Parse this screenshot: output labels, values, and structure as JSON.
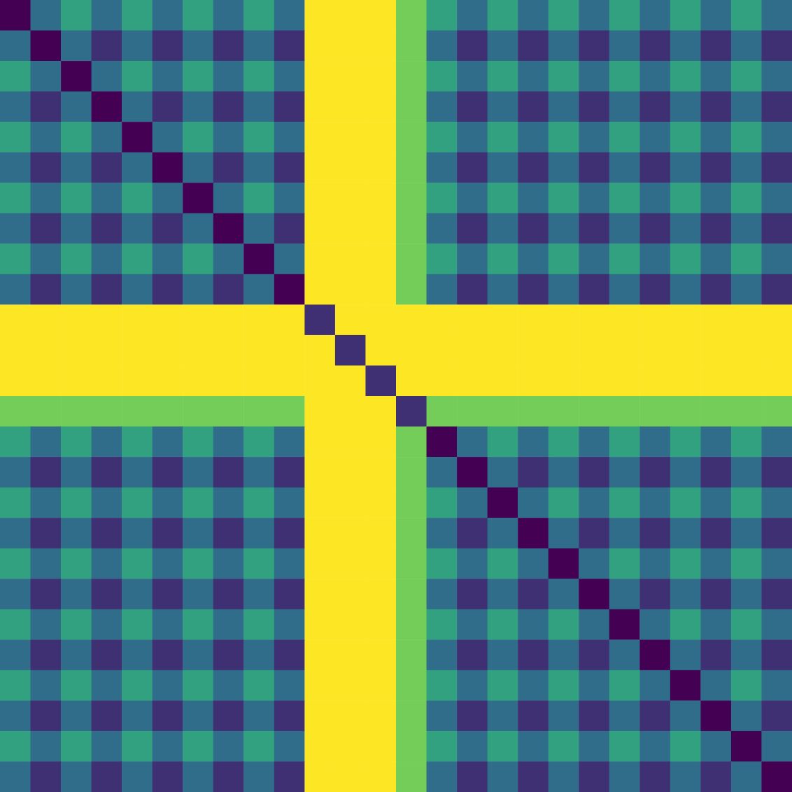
{
  "chart_data": {
    "type": "heatmap",
    "color": "viridis",
    "tick_labels": false,
    "grid": false,
    "cells": [
      [
        0.2,
        0.45,
        0.6,
        0.45,
        0.6,
        0.45,
        0.6,
        0.45,
        0.6,
        0.45,
        0.9,
        0.9,
        0.9,
        0.75,
        0.6,
        0.45,
        0.6,
        0.45,
        0.6,
        0.45,
        0.6,
        0.45,
        0.6,
        0.45,
        0.6,
        0.45
      ],
      [
        0.45,
        0.2,
        0.45,
        0.3,
        0.45,
        0.3,
        0.45,
        0.3,
        0.45,
        0.3,
        0.9,
        0.9,
        0.9,
        0.75,
        0.45,
        0.3,
        0.45,
        0.3,
        0.45,
        0.3,
        0.45,
        0.3,
        0.45,
        0.3,
        0.45,
        0.3
      ],
      [
        0.6,
        0.45,
        0.2,
        0.45,
        0.6,
        0.45,
        0.6,
        0.45,
        0.6,
        0.45,
        0.9,
        0.9,
        0.9,
        0.75,
        0.6,
        0.45,
        0.6,
        0.45,
        0.6,
        0.45,
        0.6,
        0.45,
        0.6,
        0.45,
        0.6,
        0.45
      ],
      [
        0.45,
        0.3,
        0.45,
        0.2,
        0.45,
        0.3,
        0.45,
        0.3,
        0.45,
        0.3,
        0.9,
        0.9,
        0.9,
        0.75,
        0.45,
        0.3,
        0.45,
        0.3,
        0.45,
        0.3,
        0.45,
        0.3,
        0.45,
        0.3,
        0.45,
        0.3
      ],
      [
        0.6,
        0.45,
        0.6,
        0.45,
        0.2,
        0.45,
        0.6,
        0.45,
        0.6,
        0.45,
        0.9,
        0.9,
        0.9,
        0.75,
        0.6,
        0.45,
        0.6,
        0.45,
        0.6,
        0.45,
        0.6,
        0.45,
        0.6,
        0.45,
        0.6,
        0.45
      ],
      [
        0.45,
        0.3,
        0.45,
        0.3,
        0.45,
        0.2,
        0.45,
        0.3,
        0.45,
        0.3,
        0.9,
        0.9,
        0.9,
        0.75,
        0.45,
        0.3,
        0.45,
        0.3,
        0.45,
        0.3,
        0.45,
        0.3,
        0.45,
        0.3,
        0.45,
        0.3
      ],
      [
        0.6,
        0.45,
        0.6,
        0.45,
        0.6,
        0.45,
        0.2,
        0.45,
        0.6,
        0.45,
        0.9,
        0.9,
        0.9,
        0.75,
        0.6,
        0.45,
        0.6,
        0.45,
        0.6,
        0.45,
        0.6,
        0.45,
        0.6,
        0.45,
        0.6,
        0.45
      ],
      [
        0.45,
        0.3,
        0.45,
        0.3,
        0.45,
        0.3,
        0.45,
        0.2,
        0.45,
        0.3,
        0.9,
        0.9,
        0.9,
        0.75,
        0.45,
        0.3,
        0.45,
        0.3,
        0.45,
        0.3,
        0.45,
        0.3,
        0.45,
        0.3,
        0.45,
        0.3
      ],
      [
        0.6,
        0.45,
        0.6,
        0.45,
        0.6,
        0.45,
        0.6,
        0.45,
        0.2,
        0.45,
        0.9,
        0.9,
        0.9,
        0.75,
        0.6,
        0.45,
        0.6,
        0.45,
        0.6,
        0.45,
        0.6,
        0.45,
        0.6,
        0.45,
        0.6,
        0.45
      ],
      [
        0.45,
        0.3,
        0.45,
        0.3,
        0.45,
        0.3,
        0.45,
        0.3,
        0.45,
        0.2,
        0.9,
        0.9,
        0.9,
        0.75,
        0.45,
        0.3,
        0.45,
        0.3,
        0.45,
        0.3,
        0.45,
        0.3,
        0.45,
        0.3,
        0.45,
        0.3
      ],
      [
        0.9,
        0.9,
        0.9,
        0.9,
        0.9,
        0.9,
        0.9,
        0.9,
        0.9,
        0.9,
        0.3,
        0.9,
        0.9,
        0.9,
        0.9,
        0.9,
        0.9,
        0.9,
        0.9,
        0.9,
        0.9,
        0.9,
        0.9,
        0.9,
        0.9,
        0.9
      ],
      [
        0.9,
        0.9,
        0.9,
        0.9,
        0.9,
        0.9,
        0.9,
        0.9,
        0.9,
        0.9,
        0.9,
        0.3,
        0.9,
        0.9,
        0.9,
        0.9,
        0.9,
        0.9,
        0.9,
        0.9,
        0.9,
        0.9,
        0.9,
        0.9,
        0.9,
        0.9
      ],
      [
        0.9,
        0.9,
        0.9,
        0.9,
        0.9,
        0.9,
        0.9,
        0.9,
        0.9,
        0.9,
        0.9,
        0.9,
        0.3,
        0.9,
        0.9,
        0.9,
        0.9,
        0.9,
        0.9,
        0.9,
        0.9,
        0.9,
        0.9,
        0.9,
        0.9,
        0.9
      ],
      [
        0.75,
        0.75,
        0.75,
        0.75,
        0.75,
        0.75,
        0.75,
        0.75,
        0.75,
        0.75,
        0.9,
        0.9,
        0.9,
        0.3,
        0.75,
        0.75,
        0.75,
        0.75,
        0.75,
        0.75,
        0.75,
        0.75,
        0.75,
        0.75,
        0.75,
        0.75
      ],
      [
        0.6,
        0.45,
        0.6,
        0.45,
        0.6,
        0.45,
        0.6,
        0.45,
        0.6,
        0.45,
        0.9,
        0.9,
        0.9,
        0.75,
        0.2,
        0.45,
        0.6,
        0.45,
        0.6,
        0.45,
        0.6,
        0.45,
        0.6,
        0.45,
        0.6,
        0.45
      ],
      [
        0.45,
        0.3,
        0.45,
        0.3,
        0.45,
        0.3,
        0.45,
        0.3,
        0.45,
        0.3,
        0.9,
        0.9,
        0.9,
        0.75,
        0.45,
        0.2,
        0.45,
        0.3,
        0.45,
        0.3,
        0.45,
        0.3,
        0.45,
        0.3,
        0.45,
        0.3
      ],
      [
        0.6,
        0.45,
        0.6,
        0.45,
        0.6,
        0.45,
        0.6,
        0.45,
        0.6,
        0.45,
        0.9,
        0.9,
        0.9,
        0.75,
        0.6,
        0.45,
        0.2,
        0.45,
        0.6,
        0.45,
        0.6,
        0.45,
        0.6,
        0.45,
        0.6,
        0.45
      ],
      [
        0.45,
        0.3,
        0.45,
        0.3,
        0.45,
        0.3,
        0.45,
        0.3,
        0.45,
        0.3,
        0.9,
        0.9,
        0.9,
        0.75,
        0.45,
        0.3,
        0.45,
        0.2,
        0.45,
        0.3,
        0.45,
        0.3,
        0.45,
        0.3,
        0.45,
        0.3
      ],
      [
        0.6,
        0.45,
        0.6,
        0.45,
        0.6,
        0.45,
        0.6,
        0.45,
        0.6,
        0.45,
        0.9,
        0.9,
        0.9,
        0.75,
        0.6,
        0.45,
        0.6,
        0.45,
        0.2,
        0.45,
        0.6,
        0.45,
        0.6,
        0.45,
        0.6,
        0.45
      ],
      [
        0.45,
        0.3,
        0.45,
        0.3,
        0.45,
        0.3,
        0.45,
        0.3,
        0.45,
        0.3,
        0.9,
        0.9,
        0.9,
        0.75,
        0.45,
        0.3,
        0.45,
        0.3,
        0.45,
        0.2,
        0.45,
        0.3,
        0.45,
        0.3,
        0.45,
        0.3
      ],
      [
        0.6,
        0.45,
        0.6,
        0.45,
        0.6,
        0.45,
        0.6,
        0.45,
        0.6,
        0.45,
        0.9,
        0.9,
        0.9,
        0.75,
        0.6,
        0.45,
        0.6,
        0.45,
        0.6,
        0.45,
        0.2,
        0.45,
        0.6,
        0.45,
        0.6,
        0.45
      ],
      [
        0.45,
        0.3,
        0.45,
        0.3,
        0.45,
        0.3,
        0.45,
        0.3,
        0.45,
        0.3,
        0.9,
        0.9,
        0.9,
        0.75,
        0.45,
        0.3,
        0.45,
        0.3,
        0.45,
        0.3,
        0.45,
        0.2,
        0.45,
        0.3,
        0.45,
        0.3
      ],
      [
        0.6,
        0.45,
        0.6,
        0.45,
        0.6,
        0.45,
        0.6,
        0.45,
        0.6,
        0.45,
        0.9,
        0.9,
        0.9,
        0.75,
        0.6,
        0.45,
        0.6,
        0.45,
        0.6,
        0.45,
        0.6,
        0.45,
        0.2,
        0.45,
        0.6,
        0.45
      ],
      [
        0.45,
        0.3,
        0.45,
        0.3,
        0.45,
        0.3,
        0.45,
        0.3,
        0.45,
        0.3,
        0.9,
        0.9,
        0.9,
        0.75,
        0.45,
        0.3,
        0.45,
        0.3,
        0.45,
        0.3,
        0.45,
        0.3,
        0.45,
        0.2,
        0.45,
        0.3
      ],
      [
        0.6,
        0.45,
        0.6,
        0.45,
        0.6,
        0.45,
        0.6,
        0.45,
        0.6,
        0.45,
        0.9,
        0.9,
        0.9,
        0.75,
        0.6,
        0.45,
        0.6,
        0.45,
        0.6,
        0.45,
        0.6,
        0.45,
        0.6,
        0.45,
        0.2,
        0.45
      ],
      [
        0.45,
        0.3,
        0.45,
        0.3,
        0.45,
        0.3,
        0.45,
        0.3,
        0.45,
        0.3,
        0.9,
        0.9,
        0.9,
        0.75,
        0.45,
        0.3,
        0.45,
        0.3,
        0.45,
        0.3,
        0.45,
        0.3,
        0.45,
        0.3,
        0.45,
        0.2
      ]
    ]
  }
}
